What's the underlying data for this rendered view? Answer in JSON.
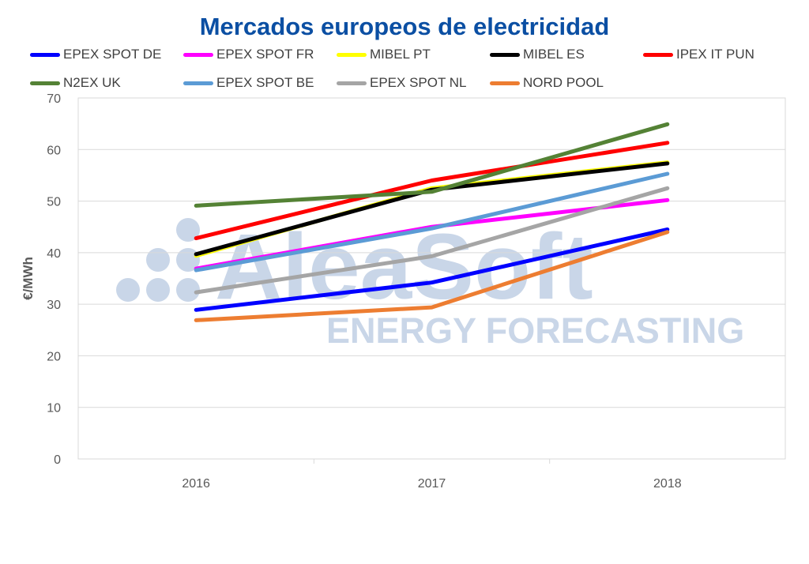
{
  "chart_data": {
    "type": "line",
    "title": "Mercados europeos de electricidad",
    "ylabel": "€/MWh",
    "xlabel": "",
    "categories": [
      "2016",
      "2017",
      "2018"
    ],
    "ylim": [
      0,
      70
    ],
    "yticks": [
      0,
      10,
      20,
      30,
      40,
      50,
      60,
      70
    ],
    "grid": true,
    "legend": "top",
    "series": [
      {
        "name": "EPEX SPOT DE",
        "color": "#0000ff",
        "values": [
          28.9,
          34.2,
          44.5
        ]
      },
      {
        "name": "EPEX SPOT FR",
        "color": "#ff00ff",
        "values": [
          36.9,
          45.0,
          50.2
        ]
      },
      {
        "name": "MIBEL PT",
        "color": "#ffff00",
        "values": [
          39.4,
          52.5,
          57.5
        ]
      },
      {
        "name": "MIBEL ES",
        "color": "#000000",
        "values": [
          39.7,
          52.2,
          57.3
        ]
      },
      {
        "name": "IPEX IT PUN",
        "color": "#ff0000",
        "values": [
          42.8,
          54.0,
          61.3
        ]
      },
      {
        "name": "N2EX UK",
        "color": "#548235",
        "values": [
          49.1,
          51.8,
          64.9
        ]
      },
      {
        "name": "EPEX SPOT BE",
        "color": "#5b9bd5",
        "values": [
          36.6,
          44.7,
          55.3
        ]
      },
      {
        "name": "EPEX SPOT NL",
        "color": "#a5a5a5",
        "values": [
          32.3,
          39.3,
          52.5
        ]
      },
      {
        "name": "NORD POOL",
        "color": "#ed7d31",
        "values": [
          26.9,
          29.4,
          44.0
        ]
      }
    ]
  },
  "watermark": {
    "brand": "AleaSoft",
    "tagline": "ENERGY FORECASTING",
    "color": "#c9d6e8"
  }
}
